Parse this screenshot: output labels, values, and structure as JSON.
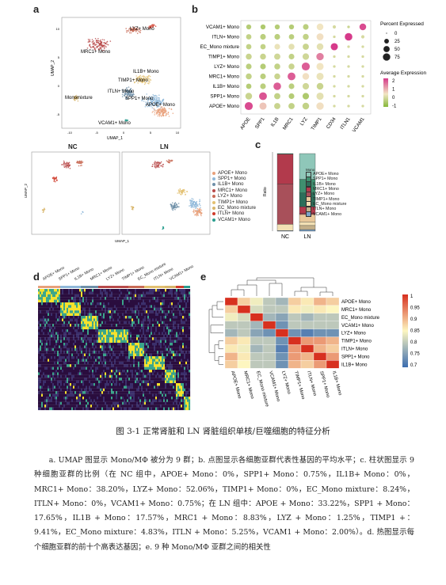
{
  "panel_letters": {
    "a": "a",
    "b": "b",
    "c": "c",
    "d": "d",
    "e": "e"
  },
  "clusters": [
    "APOE+ Mono",
    "SPP1+ Mono",
    "IL1B+ Mono",
    "MRC1+ Mono",
    "LYZ+ Mono",
    "TIMP1+ Mono",
    "EC_Mono mixture",
    "ITLN+ Mono",
    "VCAM1+ Mono"
  ],
  "colors": {
    "APOE+ Mono": "#e8a07a",
    "SPP1+ Mono": "#8fb8d9",
    "IL1B+ Mono": "#6e8fa8",
    "MRC1+ Mono": "#b84a4a",
    "LYZ+ Mono": "#c86a55",
    "TIMP1+ Mono": "#e3c070",
    "EC_Mono mixture": "#d8b56a",
    "ITLN+ Mono": "#cf3c2c",
    "VCAM1+ Mono": "#2a9d8f",
    "LN_green": "#4f9a7a"
  },
  "umap": {
    "labels": [
      {
        "text": "LYZ+ Mono"
      },
      {
        "text": "MRC1+ Mono"
      },
      {
        "text": "TIMP1+ Mono"
      },
      {
        "text": "ITLN+ Mono"
      },
      {
        "text": "SPP1+ Mono"
      },
      {
        "text": "APOE+ Mono"
      },
      {
        "text": "Monomixture"
      },
      {
        "text": "IL1B+ Mono"
      },
      {
        "text": "VCAM1+ Mono"
      }
    ],
    "ylabel": "UMAP_2",
    "xlabel": "UMAP_1",
    "xticks": [
      "-10",
      "-5",
      "0",
      "5",
      "10"
    ],
    "yticks": [
      "10",
      "5",
      "0",
      "-5"
    ]
  },
  "split_umap": {
    "titles": [
      "NC",
      "LN"
    ],
    "ylabel": "UMAP_2",
    "xlabel": "UMAP_1",
    "legend": [
      "APOE+ Mono",
      "SPP1+ Mono",
      "IL1B+ Mono",
      "MRC1+ Mono",
      "LYZ+ Mono",
      "TIMP1+ Mono",
      "EC_Mono mixture",
      "ITLN+ Mono",
      "VCAM1+ Mono"
    ]
  },
  "dotplot": {
    "rows": [
      "VCAM1+ Mono",
      "ITLN+ Mono",
      "EC_Mono mixture",
      "TIMP1+ Mono",
      "LYZ+ Mono",
      "MRC1+ Mono",
      "IL1B+ Mono",
      "SPP1+ Mono",
      "APOE+ Mono"
    ],
    "cols": [
      "APOE",
      "SPP1",
      "IL1B",
      "MRC1",
      "LYZ",
      "TIMP1",
      "CD34",
      "ITLN1",
      "VCAM1"
    ],
    "size_title": "Percent Expressed",
    "size_legend": [
      "0",
      "25",
      "50",
      "75"
    ],
    "color_title": "Average Expression",
    "color_legend": [
      "2",
      "1",
      "0",
      "-1"
    ],
    "percent": [
      [
        30,
        30,
        30,
        30,
        40,
        60,
        10,
        5,
        60
      ],
      [
        35,
        40,
        40,
        35,
        45,
        65,
        5,
        80,
        10
      ],
      [
        35,
        35,
        40,
        45,
        50,
        60,
        70,
        5,
        5
      ],
      [
        45,
        45,
        50,
        40,
        55,
        75,
        5,
        5,
        5
      ],
      [
        40,
        40,
        45,
        45,
        90,
        70,
        5,
        5,
        5
      ],
      [
        45,
        40,
        45,
        85,
        60,
        70,
        5,
        5,
        5
      ],
      [
        35,
        40,
        80,
        40,
        55,
        60,
        5,
        5,
        5
      ],
      [
        60,
        85,
        50,
        40,
        55,
        70,
        5,
        5,
        5
      ],
      [
        90,
        70,
        50,
        50,
        60,
        75,
        5,
        5,
        5
      ]
    ],
    "expression": [
      [
        -0.5,
        -0.6,
        -0.5,
        -0.5,
        -0.4,
        0.4,
        0,
        -0.2,
        2.2
      ],
      [
        -0.3,
        -0.4,
        -0.4,
        -0.4,
        -0.3,
        0.5,
        0,
        2.4,
        0
      ],
      [
        -0.3,
        -0.3,
        0.3,
        0.2,
        -0.2,
        0.2,
        2.5,
        0,
        0
      ],
      [
        -0.2,
        -0.2,
        -0.1,
        -0.3,
        -0.1,
        1.6,
        0,
        0,
        0
      ],
      [
        -0.4,
        -0.5,
        -0.3,
        -0.2,
        2.0,
        0.4,
        0,
        0,
        0
      ],
      [
        -0.3,
        -0.4,
        -0.2,
        2.0,
        0.5,
        0.3,
        0,
        0,
        0
      ],
      [
        -0.5,
        -0.4,
        2.0,
        -0.4,
        -0.1,
        -0.2,
        0,
        0,
        0
      ],
      [
        -0.2,
        2.1,
        -0.3,
        -0.5,
        -0.6,
        0.2,
        0,
        0,
        0
      ],
      [
        2.2,
        0.8,
        -0.2,
        -0.3,
        -0.3,
        0.5,
        0,
        0,
        0
      ]
    ]
  },
  "barplot": {
    "categories": [
      "NC",
      "LN"
    ],
    "ylabel": "Ratio",
    "legend_title": "Mono",
    "legend": [
      "APOE+ Mono",
      "SPP1+ Mono",
      "IL1B+ Mono",
      "MRC1+ Mono",
      "LYZ+ Mono",
      "TIMP1+ Mono",
      "EC_Mono mixture",
      "ITLN+ Mono",
      "VCAM1+ Mono"
    ]
  },
  "chart_data": [
    {
      "type": "bar",
      "categories": [
        "NC",
        "LN"
      ],
      "series": [
        {
          "name": "APOE+ Mono",
          "values": [
            0,
            33.22
          ]
        },
        {
          "name": "SPP1+ Mono",
          "values": [
            0.75,
            17.65
          ]
        },
        {
          "name": "IL1B+ Mono",
          "values": [
            0,
            17.57
          ]
        },
        {
          "name": "MRC1+ Mono",
          "values": [
            38.2,
            8.83
          ]
        },
        {
          "name": "LYZ+ Mono",
          "values": [
            52.06,
            1.25
          ]
        },
        {
          "name": "TIMP1+ Mono",
          "values": [
            0,
            9.41
          ]
        },
        {
          "name": "EC_Mono mixture",
          "values": [
            8.24,
            4.83
          ]
        },
        {
          "name": "ITLN+ Mono",
          "values": [
            0,
            5.25
          ]
        },
        {
          "name": "VCAM1+ Mono",
          "values": [
            0.75,
            2.0
          ]
        }
      ],
      "ylabel": "Ratio"
    },
    {
      "type": "heatmap",
      "rows": [
        "APOE+ Mono",
        "MRC1+ Mono",
        "EC_Mono mixture",
        "VCAM1+ Mono",
        "LYZ+ Mono",
        "TIMP1+ Mono",
        "ITLN+ Mono",
        "SPP1+ Mono",
        "IL1B+ Mono"
      ],
      "cols": [
        "APOE+ Mono",
        "MRC1+ Mono",
        "EC_Mono mixture",
        "VCAM1+ Mono",
        "LYZ+ Mono",
        "TIMP1+ Mono",
        "ITLN+ Mono",
        "SPP1+ Mono",
        "IL1B+ Mono"
      ],
      "values": [
        [
          1.0,
          0.88,
          0.84,
          0.8,
          0.78,
          0.88,
          0.86,
          0.9,
          0.88
        ],
        [
          0.88,
          1.0,
          0.82,
          0.8,
          0.8,
          0.86,
          0.84,
          0.86,
          0.85
        ],
        [
          0.84,
          0.82,
          1.0,
          0.78,
          0.76,
          0.8,
          0.78,
          0.8,
          0.8
        ],
        [
          0.8,
          0.8,
          0.78,
          1.0,
          0.74,
          0.8,
          0.8,
          0.8,
          0.8
        ],
        [
          0.78,
          0.8,
          0.76,
          0.74,
          1.0,
          0.74,
          0.72,
          0.74,
          0.74
        ],
        [
          0.88,
          0.86,
          0.8,
          0.8,
          0.74,
          1.0,
          0.92,
          0.92,
          0.9
        ],
        [
          0.86,
          0.84,
          0.78,
          0.8,
          0.72,
          0.92,
          1.0,
          0.9,
          0.88
        ],
        [
          0.9,
          0.86,
          0.8,
          0.8,
          0.74,
          0.92,
          0.9,
          1.0,
          0.92
        ],
        [
          0.88,
          0.85,
          0.8,
          0.8,
          0.74,
          0.9,
          0.88,
          0.92,
          1.0
        ]
      ],
      "color_legend": [
        "1",
        "0.95",
        "0.9",
        "0.85",
        "0.8",
        "0.75",
        "0.7"
      ]
    }
  ],
  "heatmap_d": {
    "top_labels": [
      "APOE+ Mono",
      "SPP1+ Mono",
      "IL1B+ Mono",
      "MRC1+ Mono",
      "LYZ+ Mono",
      "TIMP1+ Mono",
      "EC_Mono mixture",
      "ITLN+ Mono",
      "VCAM1+ Mono"
    ],
    "bar_colors": [
      "#e8a07a",
      "#8fb8d9",
      "#6e8fa8",
      "#b84a4a",
      "#c86a55",
      "#e3c070",
      "#d8b56a",
      "#cf3c2c",
      "#2a9d8f"
    ]
  },
  "caption": "图 3-1 正常肾脏和 LN 肾脏组织单核/巨噬细胞的特征分析",
  "body_text": "a. UMAP 图显示 Mono/MΦ 被分为 9 群；b. 点图显示各细胞亚群代表性基因的平均水平；c. 柱状图显示 9 种细胞亚群的比例（在 NC 组中，APOE+ Mono：0%，SPP1+ Mono：0.75%，IL1B+ Mono：0%，MRC1+ Mono：38.20%，LYZ+ Mono：52.06%，TIMP1+ Mono：0%，EC_Mono mixture：8.24%，ITLN+ Mono：0%，VCAM1+ Mono：0.75%；在 LN 组中：APOE + Mono：33.22%，SPP1 + Mono：17.65%，IL1B + Mono：17.57%，MRC1 + Mono：8.83%，LYZ + Mono：1.25%，TIMP1 +：9.41%，EC_Mono mixture：4.83%，ITLN + Mono：5.25%，VCAM1 + Mono：2.00%）。d. 热图显示每个细胞亚群的前十个高表达基因；e. 9 种 Mono/MΦ 亚群之间的相关性"
}
